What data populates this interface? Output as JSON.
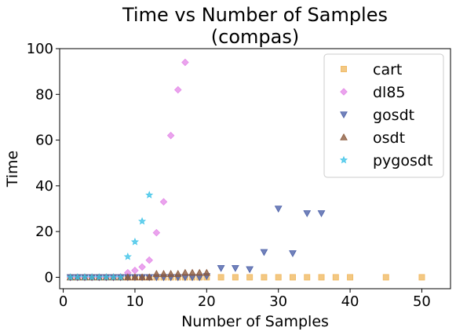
{
  "chart_data": {
    "type": "scatter",
    "title_line1": "Time vs Number of Samples",
    "title_line2": "(compas)",
    "xlabel": "Number of Samples",
    "ylabel": "Time",
    "xlim": [
      -0.5,
      54
    ],
    "ylim": [
      -5,
      100
    ],
    "xticks": [
      0,
      10,
      20,
      30,
      40,
      50
    ],
    "yticks": [
      0,
      20,
      40,
      60,
      80,
      100
    ],
    "grid": false,
    "legend_position": "top-right",
    "series": [
      {
        "name": "cart",
        "marker": "square",
        "color": "#f0b860",
        "points": [
          [
            1,
            0
          ],
          [
            2,
            0
          ],
          [
            3,
            0
          ],
          [
            4,
            0
          ],
          [
            5,
            0
          ],
          [
            6,
            0
          ],
          [
            7,
            0
          ],
          [
            8,
            0
          ],
          [
            9,
            0
          ],
          [
            10,
            0
          ],
          [
            11,
            0
          ],
          [
            12,
            0
          ],
          [
            13,
            0
          ],
          [
            14,
            0
          ],
          [
            15,
            0
          ],
          [
            16,
            0
          ],
          [
            17,
            0
          ],
          [
            18,
            0
          ],
          [
            19,
            0
          ],
          [
            20,
            0
          ],
          [
            22,
            0
          ],
          [
            24,
            0
          ],
          [
            26,
            0
          ],
          [
            28,
            0
          ],
          [
            30,
            0
          ],
          [
            32,
            0
          ],
          [
            34,
            0
          ],
          [
            36,
            0
          ],
          [
            38,
            0
          ],
          [
            40,
            0
          ],
          [
            45,
            0
          ],
          [
            50,
            0
          ]
        ]
      },
      {
        "name": "dl85",
        "marker": "diamond",
        "color": "#e48ae8",
        "points": [
          [
            1,
            0
          ],
          [
            2,
            0
          ],
          [
            3,
            0
          ],
          [
            4,
            0
          ],
          [
            5,
            0
          ],
          [
            6,
            0
          ],
          [
            7,
            0
          ],
          [
            8,
            0.2
          ],
          [
            9,
            2
          ],
          [
            10,
            3
          ],
          [
            11,
            4.5
          ],
          [
            12,
            7.5
          ],
          [
            13,
            19.5
          ],
          [
            14,
            33
          ],
          [
            15,
            62
          ],
          [
            16,
            82
          ],
          [
            17,
            94
          ]
        ]
      },
      {
        "name": "gosdt",
        "marker": "triangle-down",
        "color": "#4a5fa8",
        "points": [
          [
            1,
            0
          ],
          [
            2,
            0
          ],
          [
            3,
            0
          ],
          [
            4,
            0
          ],
          [
            5,
            0
          ],
          [
            6,
            0
          ],
          [
            7,
            0
          ],
          [
            8,
            0
          ],
          [
            9,
            0
          ],
          [
            10,
            0
          ],
          [
            11,
            0
          ],
          [
            12,
            0
          ],
          [
            13,
            0
          ],
          [
            14,
            0
          ],
          [
            15,
            0
          ],
          [
            16,
            0
          ],
          [
            17,
            0
          ],
          [
            18,
            0
          ],
          [
            19,
            0
          ],
          [
            20,
            0.5
          ],
          [
            22,
            4
          ],
          [
            24,
            4
          ],
          [
            26,
            3.5
          ],
          [
            28,
            11
          ],
          [
            30,
            30
          ],
          [
            32,
            10.5
          ],
          [
            34,
            28
          ],
          [
            36,
            28
          ]
        ]
      },
      {
        "name": "osdt",
        "marker": "triangle-up",
        "color": "#8c5a3c",
        "points": [
          [
            1,
            0
          ],
          [
            2,
            0
          ],
          [
            3,
            0
          ],
          [
            4,
            0
          ],
          [
            5,
            0
          ],
          [
            6,
            0
          ],
          [
            7,
            0
          ],
          [
            8,
            0
          ],
          [
            9,
            0
          ],
          [
            10,
            0
          ],
          [
            11,
            0
          ],
          [
            12,
            0
          ],
          [
            13,
            1.5
          ],
          [
            14,
            1.5
          ],
          [
            15,
            1.5
          ],
          [
            16,
            1.5
          ],
          [
            17,
            2
          ],
          [
            18,
            2
          ],
          [
            19,
            2
          ],
          [
            20,
            2
          ]
        ]
      },
      {
        "name": "pygosdt",
        "marker": "star",
        "color": "#40c4e8",
        "points": [
          [
            1,
            0
          ],
          [
            2,
            0
          ],
          [
            3,
            0
          ],
          [
            4,
            0
          ],
          [
            5,
            0
          ],
          [
            6,
            0
          ],
          [
            7,
            0
          ],
          [
            8,
            0
          ],
          [
            9,
            9
          ],
          [
            10,
            15.5
          ],
          [
            11,
            24.5
          ],
          [
            12,
            36
          ]
        ]
      }
    ]
  }
}
